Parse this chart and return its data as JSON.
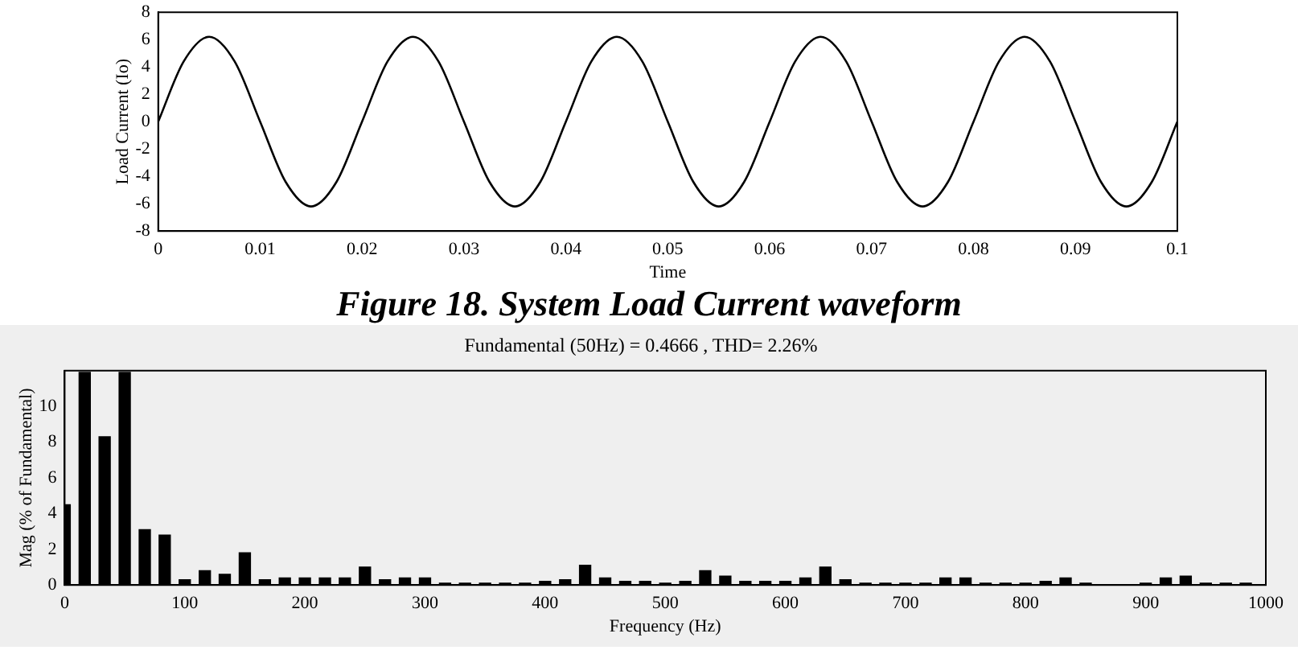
{
  "chart_data": [
    {
      "type": "line",
      "xlabel": "Time",
      "ylabel": "Load Current (Io)",
      "annotations": [
        "Figure 18. System Load Current waveform"
      ],
      "color": "#000000",
      "x": [
        0,
        0.0025,
        0.005,
        0.0075,
        0.01,
        0.0125,
        0.015,
        0.0175,
        0.02,
        0.0225,
        0.025,
        0.0275,
        0.03,
        0.0325,
        0.035,
        0.0375,
        0.04,
        0.0425,
        0.045,
        0.0475,
        0.05,
        0.0525,
        0.055,
        0.0575,
        0.06,
        0.0625,
        0.065,
        0.0675,
        0.07,
        0.0725,
        0.075,
        0.0775,
        0.08,
        0.0825,
        0.085,
        0.0875,
        0.09,
        0.0925,
        0.095,
        0.0975,
        0.1
      ],
      "values": [
        0,
        4.4,
        6.2,
        4.4,
        0,
        -4.4,
        -6.2,
        -4.4,
        0,
        4.4,
        6.2,
        4.4,
        0,
        -4.4,
        -6.2,
        -4.4,
        0,
        4.4,
        6.2,
        4.4,
        0,
        -4.4,
        -6.2,
        -4.4,
        0,
        4.4,
        6.2,
        4.4,
        0,
        -4.4,
        -6.2,
        -4.4,
        0,
        4.4,
        6.2,
        4.4,
        0,
        -4.4,
        -6.2,
        -4.4,
        0
      ],
      "xlim": [
        0,
        0.1
      ],
      "xticks": [
        0,
        0.01,
        0.02,
        0.03,
        0.04,
        0.05,
        0.06,
        0.07,
        0.08,
        0.09,
        0.1
      ],
      "ylim": [
        -8,
        8
      ],
      "yticks": [
        -8,
        -6,
        -4,
        -2,
        0,
        2,
        4,
        6,
        8
      ]
    },
    {
      "type": "bar",
      "title": "Fundamental (50Hz) = 0.4666 , THD= 2.26%",
      "xlabel": "Frequency (Hz)",
      "ylabel": "Mag (% of Fundamental)",
      "color": "#000000",
      "x": [
        0,
        16.7,
        33.3,
        50,
        66.7,
        83.3,
        100,
        116.7,
        133.3,
        150,
        166.7,
        183.3,
        200,
        216.7,
        233.3,
        250,
        266.7,
        283.3,
        300,
        316.7,
        333.3,
        350,
        366.7,
        383.3,
        400,
        416.7,
        433.3,
        450,
        466.7,
        483.3,
        500,
        516.7,
        533.3,
        550,
        566.7,
        583.3,
        600,
        616.7,
        633.3,
        650,
        666.7,
        683.3,
        700,
        716.7,
        733.3,
        750,
        766.7,
        783.3,
        800,
        816.7,
        833.3,
        850,
        866.7,
        883.3,
        900,
        916.7,
        933.3,
        950,
        966.7,
        983.3
      ],
      "values": [
        4.5,
        11.9,
        8.3,
        11.9,
        3.1,
        2.8,
        0.3,
        0.8,
        0.6,
        1.8,
        0.3,
        0.4,
        0.4,
        0.4,
        0.4,
        1.0,
        0.3,
        0.4,
        0.4,
        0.1,
        0.1,
        0.1,
        0.1,
        0.1,
        0.2,
        0.3,
        1.1,
        0.4,
        0.2,
        0.2,
        0.1,
        0.2,
        0.8,
        0.5,
        0.2,
        0.2,
        0.2,
        0.4,
        1.0,
        0.3,
        0.1,
        0.1,
        0.1,
        0.1,
        0.4,
        0.4,
        0.1,
        0.1,
        0.1,
        0.2,
        0.4,
        0.1,
        null,
        null,
        0.1,
        0.4,
        0.5,
        0.1,
        0.1,
        0.1
      ],
      "xlim": [
        0,
        1000
      ],
      "xticks": [
        0,
        100,
        200,
        300,
        400,
        500,
        600,
        700,
        800,
        900,
        1000
      ],
      "ylim": [
        0,
        12
      ],
      "yticks": [
        0,
        2,
        4,
        6,
        8,
        10
      ]
    }
  ]
}
